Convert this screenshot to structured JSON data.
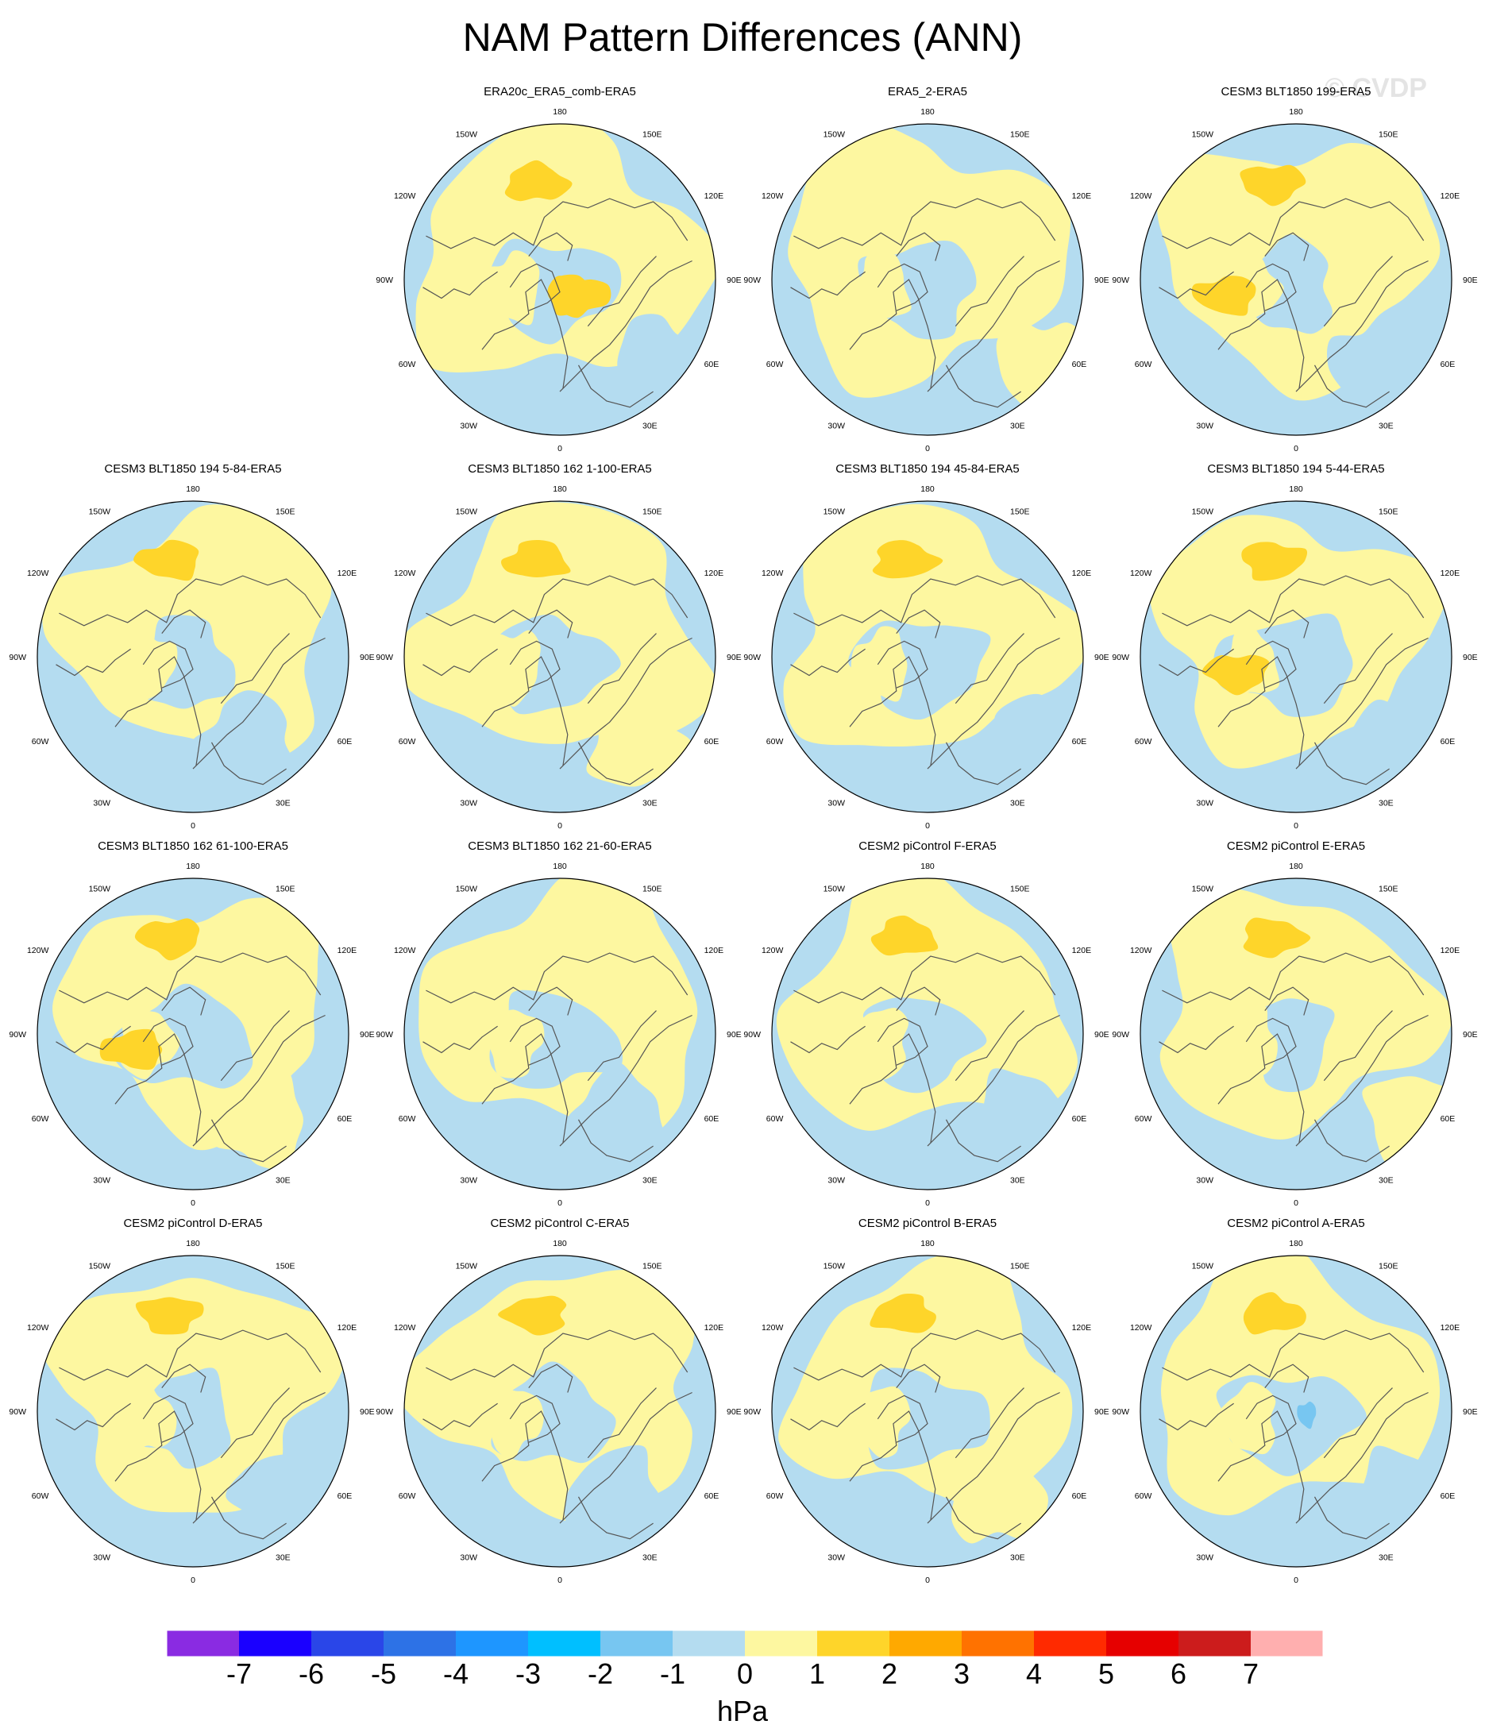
{
  "title": "NAM Pattern Differences (ANN)",
  "watermark": "© CVDP",
  "colors": {
    "neg_1": "#b4dcf0",
    "pos_1": "#fdf7a0",
    "pos_2": "#fed52a",
    "neg_2": "#77c6f1",
    "coast": "#555555"
  },
  "chart_data": {
    "type": "heatmap",
    "projection": "north polar stereographic",
    "variable": "NAM pattern difference",
    "units": "hPa",
    "longitude_labels": [
      "180",
      "150E",
      "120E",
      "90E",
      "60E",
      "30E",
      "0",
      "30W",
      "60W",
      "90W",
      "120W",
      "150W"
    ],
    "panels": [
      {
        "title": "ERA20c_ERA5_comb-ERA5",
        "pos_frac": 0.55,
        "pos2_count": 3,
        "neg2_count": 0
      },
      {
        "title": "ERA5_2-ERA5",
        "pos_frac": 0.5,
        "pos2_count": 0,
        "neg2_count": 0
      },
      {
        "title": "CESM3 BLT1850 199-ERA5",
        "pos_frac": 0.45,
        "pos2_count": 2,
        "neg2_count": 0
      },
      {
        "title": "CESM3 BLT1850 194 5-84-ERA5",
        "pos_frac": 0.45,
        "pos2_count": 1,
        "neg2_count": 0
      },
      {
        "title": "CESM3 BLT1850 162 1-100-ERA5",
        "pos_frac": 0.5,
        "pos2_count": 1,
        "neg2_count": 0
      },
      {
        "title": "CESM3 BLT1850 194 45-84-ERA5",
        "pos_frac": 0.5,
        "pos2_count": 1,
        "neg2_count": 0
      },
      {
        "title": "CESM3 BLT1850 194 5-44-ERA5",
        "pos_frac": 0.45,
        "pos2_count": 2,
        "neg2_count": 0
      },
      {
        "title": "CESM3 BLT1850 162 61-100-ERA5",
        "pos_frac": 0.4,
        "pos2_count": 2,
        "neg2_count": 0
      },
      {
        "title": "CESM3 BLT1850 162 21-60-ERA5",
        "pos_frac": 0.5,
        "pos2_count": 0,
        "neg2_count": 0
      },
      {
        "title": "CESM2 piControl F-ERA5",
        "pos_frac": 0.5,
        "pos2_count": 1,
        "neg2_count": 0
      },
      {
        "title": "CESM2 piControl E-ERA5",
        "pos_frac": 0.45,
        "pos2_count": 1,
        "neg2_count": 0
      },
      {
        "title": "CESM2 piControl D-ERA5",
        "pos_frac": 0.45,
        "pos2_count": 1,
        "neg2_count": 0
      },
      {
        "title": "CESM2 piControl C-ERA5",
        "pos_frac": 0.5,
        "pos2_count": 1,
        "neg2_count": 0
      },
      {
        "title": "CESM2 piControl B-ERA5",
        "pos_frac": 0.45,
        "pos2_count": 1,
        "neg2_count": 0
      },
      {
        "title": "CESM2 piControl A-ERA5",
        "pos_frac": 0.5,
        "pos2_count": 1,
        "neg2_count": 1
      }
    ],
    "colorbar": {
      "label": "hPa",
      "tick_labels": [
        "-7",
        "-6",
        "-5",
        "-4",
        "-3",
        "-2",
        "-1",
        "0",
        "1",
        "2",
        "3",
        "4",
        "5",
        "6",
        "7"
      ],
      "colors": [
        "#8a2be2",
        "#1a00ff",
        "#2a46e8",
        "#2d72e6",
        "#1e96ff",
        "#00bfff",
        "#77c6f1",
        "#b4dcf0",
        "#fdf7a0",
        "#fed52a",
        "#ffa900",
        "#ff7200",
        "#ff2a00",
        "#e60000",
        "#cc1c1c",
        "#ffafaf"
      ]
    }
  }
}
